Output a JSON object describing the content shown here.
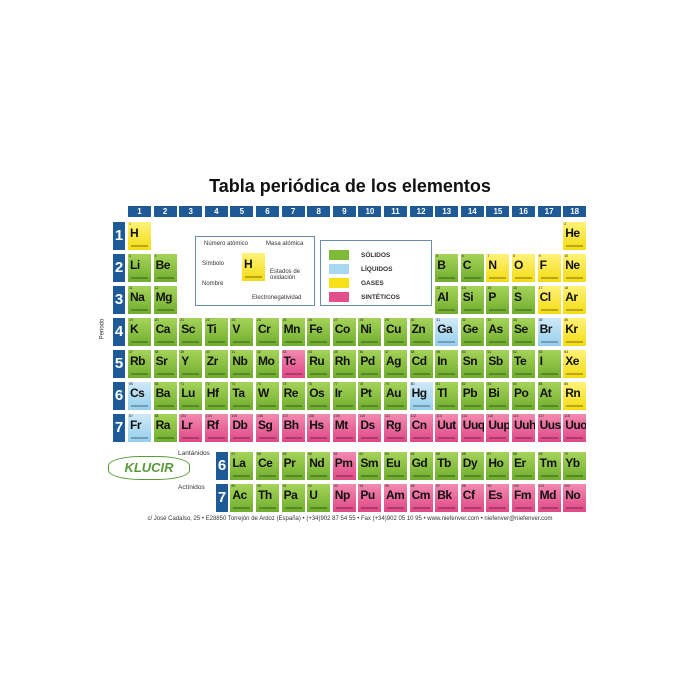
{
  "title": "Tabla periódica de los elementos",
  "groups": [
    "1",
    "2",
    "3",
    "4",
    "5",
    "6",
    "7",
    "8",
    "9",
    "10",
    "11",
    "12",
    "13",
    "14",
    "15",
    "16",
    "17",
    "18"
  ],
  "periods": [
    "1",
    "2",
    "3",
    "4",
    "5",
    "6",
    "7"
  ],
  "period_axis_label": "Periodo",
  "key": {
    "atomic_number": "Número atómico",
    "atomic_mass": "Masa atómica",
    "symbol": "Símbolo",
    "oxidation": "Estados de oxidación",
    "name": "Nombre",
    "electronegativity": "Electronegatividad",
    "example_symbol": "H"
  },
  "legend": [
    {
      "label": "SÓLIDOS",
      "state": "s",
      "color": "#7dba3a"
    },
    {
      "label": "LÍQUIDOS",
      "state": "l",
      "color": "#a7d8ef"
    },
    {
      "label": "GASES",
      "state": "g",
      "color": "#f7e21a"
    },
    {
      "label": "SINTÉTICOS",
      "state": "x",
      "color": "#e2508a"
    }
  ],
  "series": {
    "lanthanides_label": "Lantánidos",
    "actinides_label": "Actínidos",
    "lanthanides_period": "6",
    "actinides_period": "7"
  },
  "logo": "KLUCIR",
  "footer": "c/ José Cadalso, 25 • E28850 Torrejón de Ardoz (España) • (+34)902 87 54 55 • Fax (+34)902 05 10 95 • www.niefenver.com • niefenver@niefenver.com",
  "main": [
    [
      "H",
      1,
      "g",
      1,
      1
    ],
    [
      "He",
      2,
      "g",
      1,
      18
    ],
    [
      "Li",
      3,
      "s",
      2,
      1
    ],
    [
      "Be",
      4,
      "s",
      2,
      2
    ],
    [
      "B",
      5,
      "s",
      2,
      13
    ],
    [
      "C",
      6,
      "s",
      2,
      14
    ],
    [
      "N",
      7,
      "g",
      2,
      15
    ],
    [
      "O",
      8,
      "g",
      2,
      16
    ],
    [
      "F",
      9,
      "g",
      2,
      17
    ],
    [
      "Ne",
      10,
      "g",
      2,
      18
    ],
    [
      "Na",
      11,
      "s",
      3,
      1
    ],
    [
      "Mg",
      12,
      "s",
      3,
      2
    ],
    [
      "Al",
      13,
      "s",
      3,
      13
    ],
    [
      "Si",
      14,
      "s",
      3,
      14
    ],
    [
      "P",
      15,
      "s",
      3,
      15
    ],
    [
      "S",
      16,
      "s",
      3,
      16
    ],
    [
      "Cl",
      17,
      "g",
      3,
      17
    ],
    [
      "Ar",
      18,
      "g",
      3,
      18
    ],
    [
      "K",
      19,
      "s",
      4,
      1
    ],
    [
      "Ca",
      20,
      "s",
      4,
      2
    ],
    [
      "Sc",
      21,
      "s",
      4,
      3
    ],
    [
      "Ti",
      22,
      "s",
      4,
      4
    ],
    [
      "V",
      23,
      "s",
      4,
      5
    ],
    [
      "Cr",
      24,
      "s",
      4,
      6
    ],
    [
      "Mn",
      25,
      "s",
      4,
      7
    ],
    [
      "Fe",
      26,
      "s",
      4,
      8
    ],
    [
      "Co",
      27,
      "s",
      4,
      9
    ],
    [
      "Ni",
      28,
      "s",
      4,
      10
    ],
    [
      "Cu",
      29,
      "s",
      4,
      11
    ],
    [
      "Zn",
      30,
      "s",
      4,
      12
    ],
    [
      "Ga",
      31,
      "l",
      4,
      13
    ],
    [
      "Ge",
      32,
      "s",
      4,
      14
    ],
    [
      "As",
      33,
      "s",
      4,
      15
    ],
    [
      "Se",
      34,
      "s",
      4,
      16
    ],
    [
      "Br",
      35,
      "l",
      4,
      17
    ],
    [
      "Kr",
      36,
      "g",
      4,
      18
    ],
    [
      "Rb",
      37,
      "s",
      5,
      1
    ],
    [
      "Sr",
      38,
      "s",
      5,
      2
    ],
    [
      "Y",
      39,
      "s",
      5,
      3
    ],
    [
      "Zr",
      40,
      "s",
      5,
      4
    ],
    [
      "Nb",
      41,
      "s",
      5,
      5
    ],
    [
      "Mo",
      42,
      "s",
      5,
      6
    ],
    [
      "Tc",
      43,
      "x",
      5,
      7
    ],
    [
      "Ru",
      44,
      "s",
      5,
      8
    ],
    [
      "Rh",
      45,
      "s",
      5,
      9
    ],
    [
      "Pd",
      46,
      "s",
      5,
      10
    ],
    [
      "Ag",
      47,
      "s",
      5,
      11
    ],
    [
      "Cd",
      48,
      "s",
      5,
      12
    ],
    [
      "In",
      49,
      "s",
      5,
      13
    ],
    [
      "Sn",
      50,
      "s",
      5,
      14
    ],
    [
      "Sb",
      51,
      "s",
      5,
      15
    ],
    [
      "Te",
      52,
      "s",
      5,
      16
    ],
    [
      "I",
      53,
      "s",
      5,
      17
    ],
    [
      "Xe",
      54,
      "g",
      5,
      18
    ],
    [
      "Cs",
      55,
      "l",
      6,
      1
    ],
    [
      "Ba",
      56,
      "s",
      6,
      2
    ],
    [
      "Lu",
      71,
      "s",
      6,
      3
    ],
    [
      "Hf",
      72,
      "s",
      6,
      4
    ],
    [
      "Ta",
      73,
      "s",
      6,
      5
    ],
    [
      "W",
      74,
      "s",
      6,
      6
    ],
    [
      "Re",
      75,
      "s",
      6,
      7
    ],
    [
      "Os",
      76,
      "s",
      6,
      8
    ],
    [
      "Ir",
      77,
      "s",
      6,
      9
    ],
    [
      "Pt",
      78,
      "s",
      6,
      10
    ],
    [
      "Au",
      79,
      "s",
      6,
      11
    ],
    [
      "Hg",
      80,
      "l",
      6,
      12
    ],
    [
      "Tl",
      81,
      "s",
      6,
      13
    ],
    [
      "Pb",
      82,
      "s",
      6,
      14
    ],
    [
      "Bi",
      83,
      "s",
      6,
      15
    ],
    [
      "Po",
      84,
      "s",
      6,
      16
    ],
    [
      "At",
      85,
      "s",
      6,
      17
    ],
    [
      "Rn",
      86,
      "g",
      6,
      18
    ],
    [
      "Fr",
      87,
      "l",
      7,
      1
    ],
    [
      "Ra",
      88,
      "s",
      7,
      2
    ],
    [
      "Lr",
      103,
      "x",
      7,
      3
    ],
    [
      "Rf",
      104,
      "x",
      7,
      4
    ],
    [
      "Db",
      105,
      "x",
      7,
      5
    ],
    [
      "Sg",
      106,
      "x",
      7,
      6
    ],
    [
      "Bh",
      107,
      "x",
      7,
      7
    ],
    [
      "Hs",
      108,
      "x",
      7,
      8
    ],
    [
      "Mt",
      109,
      "x",
      7,
      9
    ],
    [
      "Ds",
      110,
      "x",
      7,
      10
    ],
    [
      "Rg",
      111,
      "x",
      7,
      11
    ],
    [
      "Cn",
      112,
      "x",
      7,
      12
    ],
    [
      "Uut",
      113,
      "x",
      7,
      13
    ],
    [
      "Uuq",
      114,
      "x",
      7,
      14
    ],
    [
      "Uup",
      115,
      "x",
      7,
      15
    ],
    [
      "Uuh",
      116,
      "x",
      7,
      16
    ],
    [
      "Uus",
      117,
      "x",
      7,
      17
    ],
    [
      "Uuo",
      118,
      "x",
      7,
      18
    ]
  ],
  "lanthanides": [
    [
      "La",
      57,
      "s"
    ],
    [
      "Ce",
      58,
      "s"
    ],
    [
      "Pr",
      59,
      "s"
    ],
    [
      "Nd",
      60,
      "s"
    ],
    [
      "Pm",
      61,
      "x"
    ],
    [
      "Sm",
      62,
      "s"
    ],
    [
      "Eu",
      63,
      "s"
    ],
    [
      "Gd",
      64,
      "s"
    ],
    [
      "Tb",
      65,
      "s"
    ],
    [
      "Dy",
      66,
      "s"
    ],
    [
      "Ho",
      67,
      "s"
    ],
    [
      "Er",
      68,
      "s"
    ],
    [
      "Tm",
      69,
      "s"
    ],
    [
      "Yb",
      70,
      "s"
    ]
  ],
  "actinides": [
    [
      "Ac",
      89,
      "s"
    ],
    [
      "Th",
      90,
      "s"
    ],
    [
      "Pa",
      91,
      "s"
    ],
    [
      "U",
      92,
      "s"
    ],
    [
      "Np",
      93,
      "x"
    ],
    [
      "Pu",
      94,
      "x"
    ],
    [
      "Am",
      95,
      "x"
    ],
    [
      "Cm",
      96,
      "x"
    ],
    [
      "Bk",
      97,
      "x"
    ],
    [
      "Cf",
      98,
      "x"
    ],
    [
      "Es",
      99,
      "x"
    ],
    [
      "Fm",
      100,
      "x"
    ],
    [
      "Md",
      101,
      "x"
    ],
    [
      "No",
      102,
      "x"
    ]
  ]
}
